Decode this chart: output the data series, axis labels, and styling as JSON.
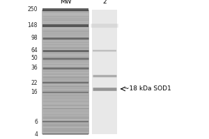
{
  "bg_color": "#ffffff",
  "title_mw": "MW",
  "title_lane2": "2",
  "mw_positions": [
    250,
    148,
    98,
    64,
    50,
    36,
    22,
    16,
    6,
    4
  ],
  "annotation_text": "~18 kDa SOD1",
  "arrow_mw": 18,
  "sample_bands_mw": [
    64,
    28,
    18
  ],
  "sample_band_alphas": [
    0.35,
    0.55,
    0.8
  ],
  "font_size_labels": 5.5,
  "font_size_header": 6.5,
  "font_size_annotation": 6.5,
  "ladder_band_alphas": [
    0.85,
    0.8,
    0.6,
    0.65,
    0.55,
    0.58,
    0.5,
    0.48,
    0.52,
    0.5
  ],
  "ladder_band_widths": [
    3.0,
    2.8,
    2.2,
    2.2,
    2.0,
    2.0,
    1.6,
    1.5,
    1.5,
    1.5
  ]
}
